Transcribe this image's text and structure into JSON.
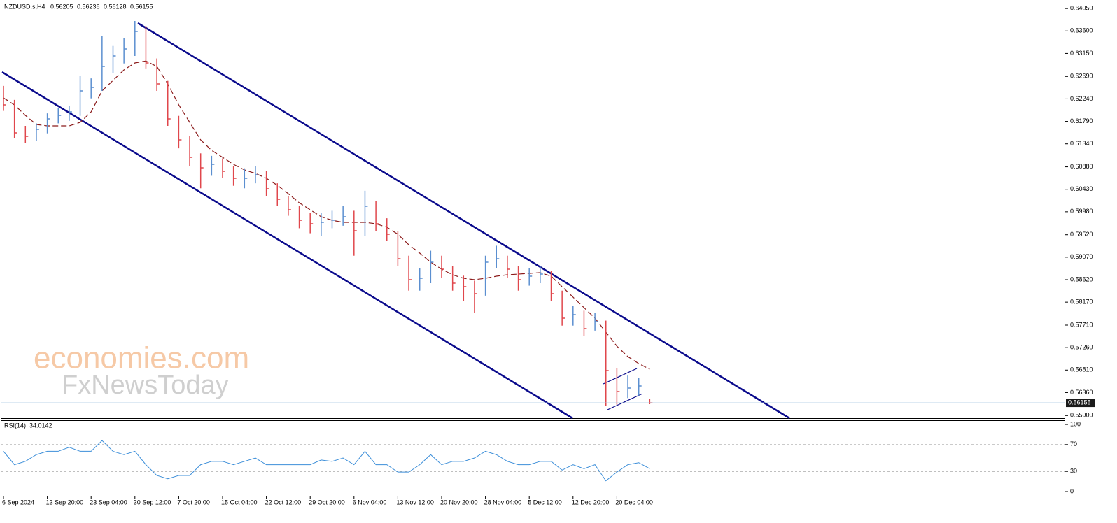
{
  "chart_data": [
    {
      "type": "ohlc",
      "title": "NZDUSD.s,H4",
      "last_open": 0.56205,
      "categories": [
        "6 Sep 2024",
        null,
        null,
        null,
        "13 Sep 20:00",
        null,
        null,
        null,
        "23 Sep 04:00",
        null,
        null,
        null,
        "30 Sep 12:00",
        null,
        null,
        null,
        "7 Oct 20:00",
        null,
        null,
        null,
        "15 Oct 04:00",
        null,
        null,
        null,
        "22 Oct 12:00",
        null,
        null,
        null,
        "29 Oct 20:00",
        null,
        null,
        null,
        "6 Nov 04:00",
        null,
        null,
        null,
        "13 Nov 12:00",
        null,
        null,
        null,
        "20 Nov 20:00",
        null,
        null,
        null,
        "28 Nov 04:00",
        null,
        null,
        null,
        "5 Dec 12:00",
        null,
        null,
        null,
        "12 Dec 20:00",
        null,
        null,
        null,
        "20 Dec 04:00",
        null,
        null,
        null
      ],
      "high": [
        0.625,
        0.6222,
        0.617,
        0.6175,
        0.6195,
        0.6205,
        0.621,
        0.627,
        0.6265,
        0.635,
        0.633,
        0.6345,
        0.638,
        0.637,
        0.6305,
        0.626,
        0.619,
        0.615,
        0.6115,
        0.611,
        0.6105,
        0.609,
        0.6085,
        0.609,
        0.608,
        0.6055,
        0.603,
        0.601,
        0.5995,
        0.5995,
        0.6,
        0.601,
        0.6,
        0.604,
        0.602,
        0.5985,
        0.596,
        0.591,
        0.5885,
        0.592,
        0.591,
        0.589,
        0.587,
        0.586,
        0.591,
        0.593,
        0.591,
        0.589,
        0.5885,
        0.589,
        0.588,
        0.584,
        0.581,
        0.58,
        0.5795,
        0.578,
        0.5685,
        0.567,
        0.5665,
        0.56236
      ],
      "low": [
        0.62,
        0.6146,
        0.6135,
        0.614,
        0.6155,
        0.6175,
        0.618,
        0.619,
        0.6225,
        0.624,
        0.6275,
        0.6295,
        0.631,
        0.6285,
        0.624,
        0.617,
        0.6125,
        0.609,
        0.6045,
        0.607,
        0.6065,
        0.605,
        0.6045,
        0.6055,
        0.603,
        0.601,
        0.599,
        0.5965,
        0.5955,
        0.595,
        0.5965,
        0.597,
        0.591,
        0.595,
        0.596,
        0.594,
        0.589,
        0.584,
        0.584,
        0.5855,
        0.5865,
        0.584,
        0.582,
        0.5795,
        0.583,
        0.5885,
        0.5865,
        0.584,
        0.585,
        0.5855,
        0.582,
        0.577,
        0.577,
        0.575,
        0.576,
        0.561,
        0.5612,
        0.5625,
        0.563,
        0.56128
      ],
      "close": [
        0.6212,
        0.6156,
        0.6149,
        0.6163,
        0.6184,
        0.6191,
        0.6198,
        0.624,
        0.6247,
        0.6289,
        0.631,
        0.6324,
        0.6359,
        0.6296,
        0.6254,
        0.6184,
        0.6142,
        0.6107,
        0.6086,
        0.6093,
        0.6079,
        0.6065,
        0.6065,
        0.6072,
        0.6044,
        0.6023,
        0.6002,
        0.5981,
        0.5974,
        0.59768,
        0.5981,
        0.5988,
        0.596,
        0.6009,
        0.5974,
        0.5953,
        0.5904,
        0.5862,
        0.58648,
        0.5897,
        0.5883,
        0.5855,
        0.5848,
        0.5834,
        0.5897,
        0.5904,
        0.5883,
        0.5862,
        0.5869,
        0.58732,
        0.5834,
        0.5785,
        0.5792,
        0.5764,
        0.5778,
        0.568,
        0.5638,
        0.5645,
        0.56492,
        0.56155
      ],
      "up_color": "#5b8fd0",
      "down_color": "#e0474c",
      "overlays": [
        {
          "color": "#8b1a1a",
          "values": [
            0.6226,
            0.6212,
            0.6191,
            0.61728,
            0.617,
            0.617,
            0.617,
            0.6177,
            0.6198,
            0.624,
            0.6261,
            0.6282,
            0.6296,
            0.62998,
            0.6289,
            0.6254,
            0.6212,
            0.6177,
            0.6142,
            0.6121,
            0.6107,
            0.6093,
            0.60818,
            0.60748,
            0.6065,
            0.6051,
            0.60342,
            0.6016,
            0.6002,
            0.5988,
            0.5981,
            0.59768,
            0.59768,
            0.59768,
            0.5974,
            0.5967,
            0.5953,
            0.5932,
            0.59152,
            0.5897,
            0.5883,
            0.58718,
            0.58648,
            0.5862,
            0.58648,
            0.5869,
            0.58718,
            0.58732,
            0.58746,
            0.5876,
            0.5869,
            0.5848,
            0.5827,
            0.5806,
            0.5785,
            0.5757,
            0.5729,
            0.5708,
            0.5694,
            0.56828
          ]
        }
      ],
      "ylim": [
        0.55848,
        0.64178
      ],
      "yticks": [
        {
          "value": 0.6405,
          "label": "0.64050"
        },
        {
          "value": 0.636,
          "label": "0.63600"
        },
        {
          "value": 0.6315,
          "label": "0.63150"
        },
        {
          "value": 0.6269,
          "label": "0.62690"
        },
        {
          "value": 0.6224,
          "label": "0.62240"
        },
        {
          "value": 0.6179,
          "label": "0.61790"
        },
        {
          "value": 0.6134,
          "label": "0.61340"
        },
        {
          "value": 0.6088,
          "label": "0.60880"
        },
        {
          "value": 0.6043,
          "label": "0.60430"
        },
        {
          "value": 0.5998,
          "label": "0.59980"
        },
        {
          "value": 0.5952,
          "label": "0.59520"
        },
        {
          "value": 0.5907,
          "label": "0.59070"
        },
        {
          "value": 0.5862,
          "label": "0.58620"
        },
        {
          "value": 0.5817,
          "label": "0.58170"
        },
        {
          "value": 0.5771,
          "label": "0.57710"
        },
        {
          "value": 0.5726,
          "label": "0.57260"
        },
        {
          "value": 0.5681,
          "label": "0.56810"
        },
        {
          "value": 0.5636,
          "label": "0.56360"
        },
        {
          "value": 0.559,
          "label": "0.55900"
        }
      ],
      "watermark": [
        "economies.com",
        "FxNewsToday"
      ]
    },
    {
      "type": "line",
      "title": "RSI(14)",
      "color": "#3d8fd9",
      "values": [
        60,
        40,
        45,
        55,
        60,
        60,
        66,
        60,
        60,
        76,
        60,
        55,
        60,
        40,
        24,
        19,
        24,
        24,
        40,
        45,
        45,
        40,
        45,
        50,
        40,
        40,
        40,
        40,
        40,
        47,
        45,
        50,
        40,
        60,
        40,
        40,
        29,
        29,
        40,
        55,
        40,
        45,
        45,
        50,
        60,
        55,
        45,
        40,
        40,
        45,
        45,
        32,
        40,
        34,
        40,
        16,
        29,
        40,
        43,
        34.0142
      ],
      "ylim": [
        -7.3,
        106.3
      ],
      "yticks": [
        0,
        30,
        70,
        100
      ]
    }
  ]
}
